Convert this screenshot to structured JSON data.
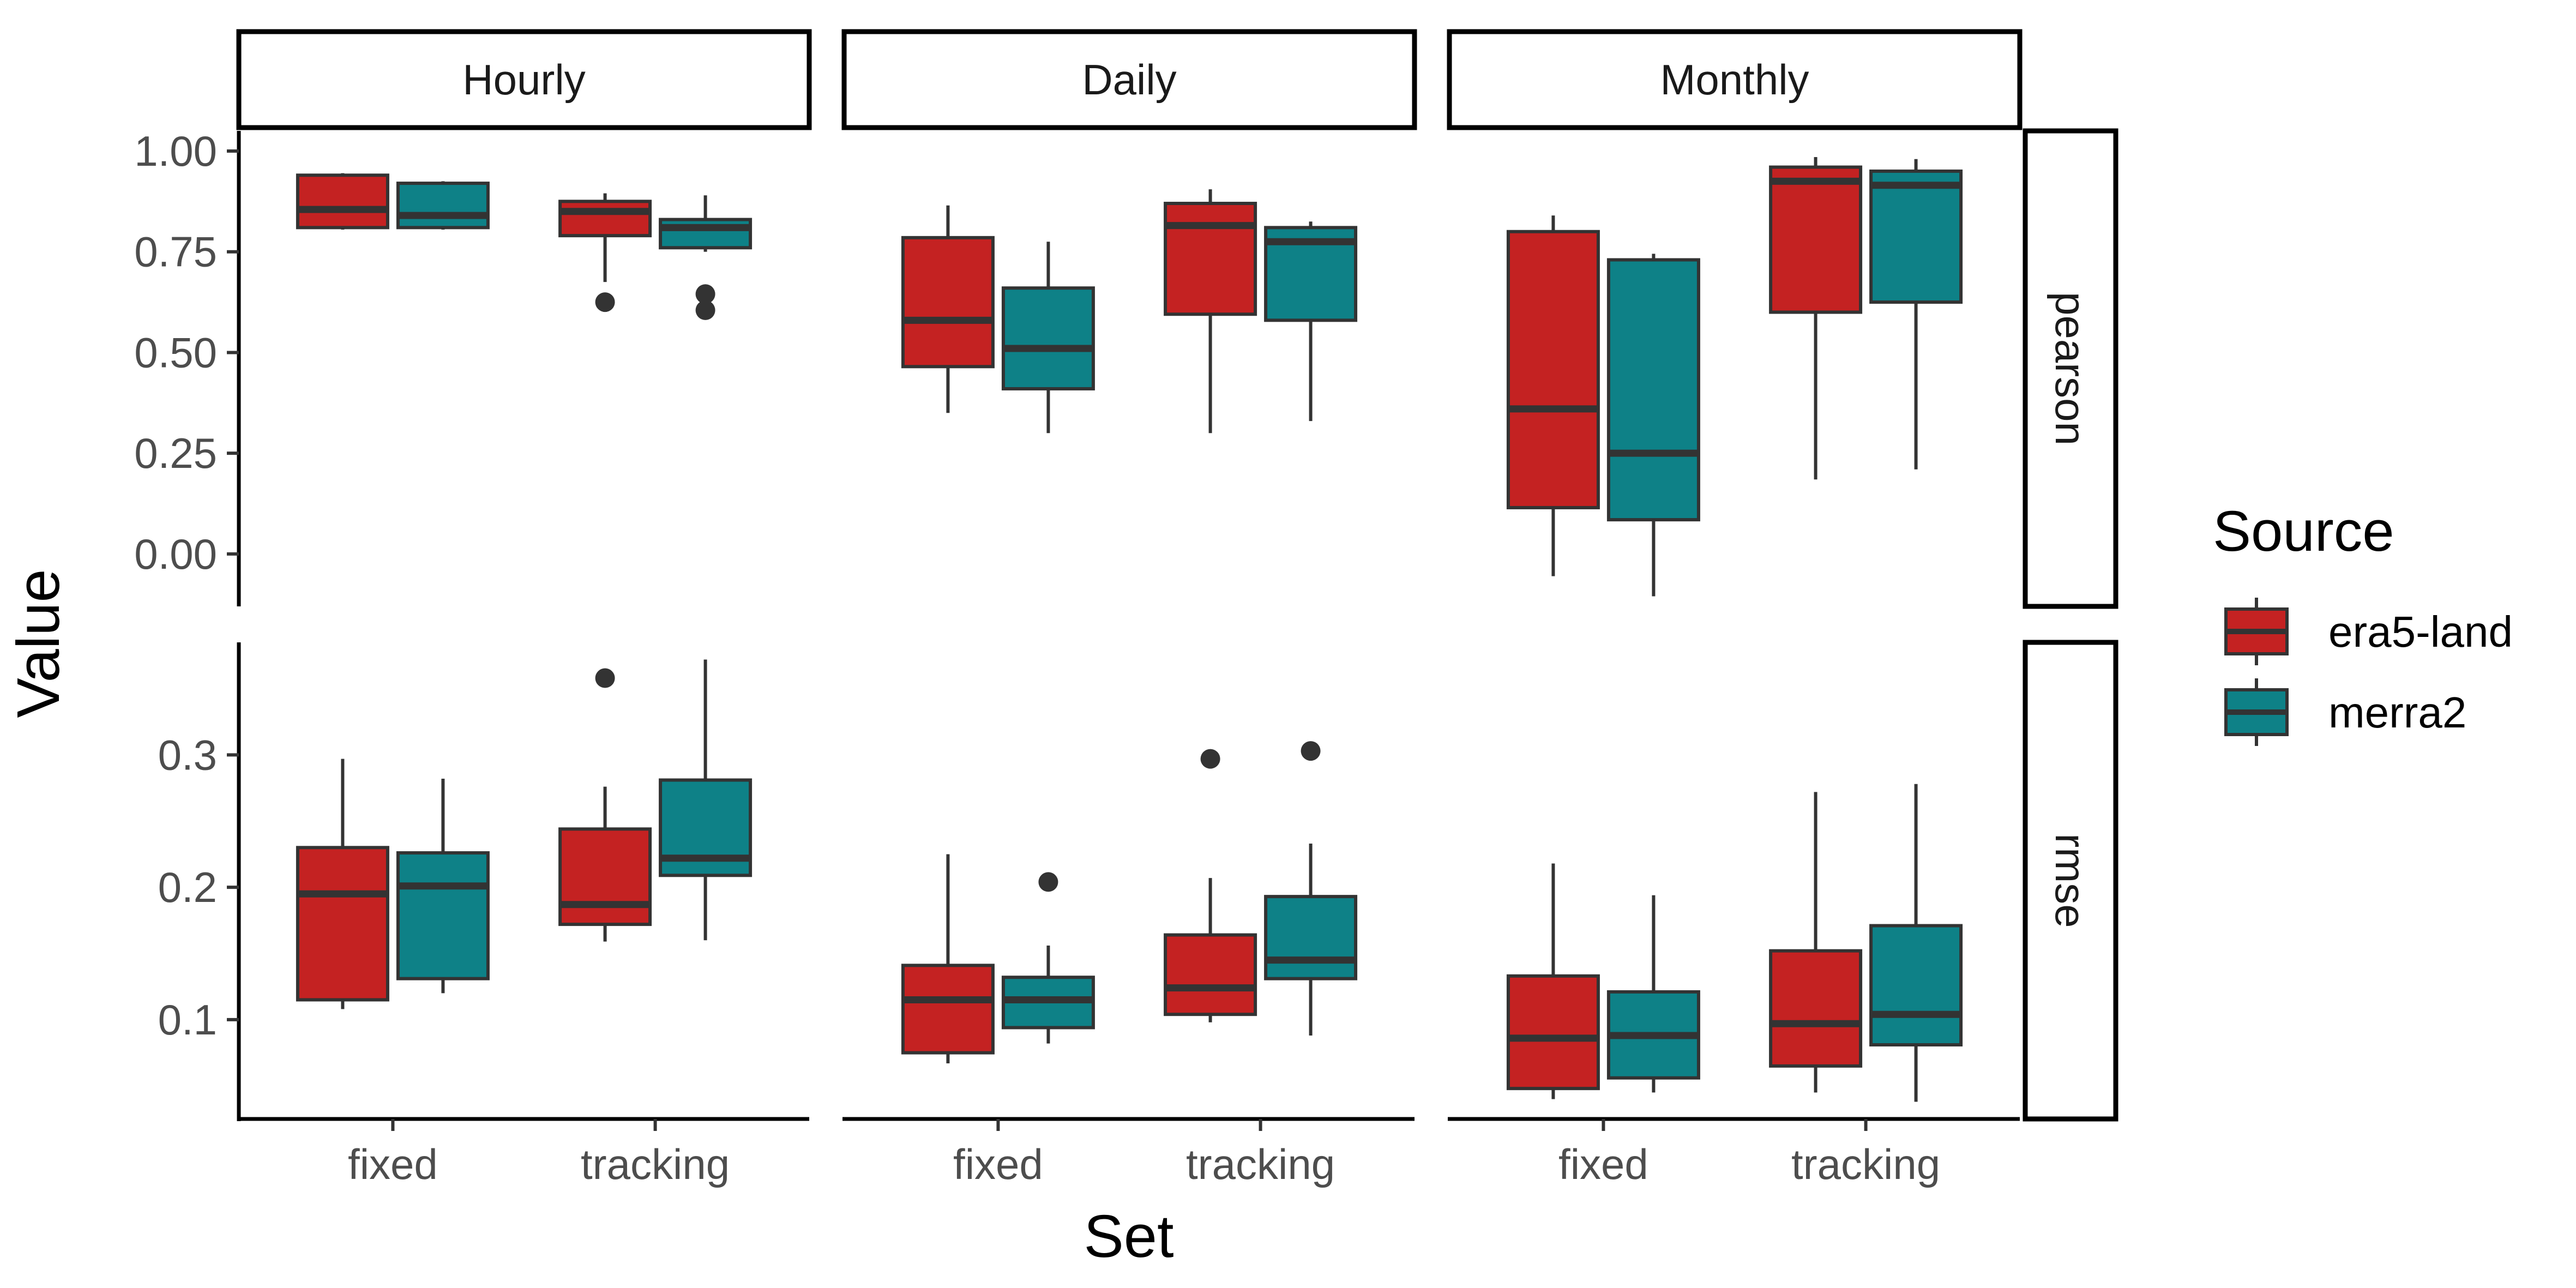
{
  "chart_data": {
    "type": "boxplot",
    "x_title": "Set",
    "y_title": "Value",
    "facet_columns": [
      "Hourly",
      "Daily",
      "Monthly"
    ],
    "facet_rows": [
      {
        "key": "pearson",
        "label": "pearson",
        "ylim": [
          -0.13,
          1.05
        ],
        "ticks": [
          {
            "v": 0,
            "label": "0.00"
          },
          {
            "v": 0.25,
            "label": "0.25"
          },
          {
            "v": 0.5,
            "label": "0.50"
          },
          {
            "v": 0.75,
            "label": "0.75"
          },
          {
            "v": 1.0,
            "label": "1.00"
          }
        ]
      },
      {
        "key": "rmse",
        "label": "rmse",
        "ylim": [
          0.025,
          0.385
        ],
        "ticks": [
          {
            "v": 0.1,
            "label": "0.1"
          },
          {
            "v": 0.2,
            "label": "0.2"
          },
          {
            "v": 0.3,
            "label": "0.3"
          }
        ]
      }
    ],
    "categories": [
      "fixed",
      "tracking"
    ],
    "legend": {
      "title": "Source",
      "position": "right",
      "entries": [
        {
          "key": "era5",
          "label": "era5-land",
          "color": "#C42222"
        },
        {
          "key": "merra2",
          "label": "merra2",
          "color": "#0E8187"
        }
      ]
    },
    "boxes": [
      {
        "row": "pearson",
        "col": "Hourly",
        "set": "fixed",
        "source": "era5",
        "min": 0.805,
        "q1": 0.81,
        "median": 0.855,
        "q3": 0.94,
        "max": 0.945,
        "outliers": []
      },
      {
        "row": "pearson",
        "col": "Hourly",
        "set": "fixed",
        "source": "merra2",
        "min": 0.805,
        "q1": 0.81,
        "median": 0.84,
        "q3": 0.92,
        "max": 0.925,
        "outliers": []
      },
      {
        "row": "pearson",
        "col": "Hourly",
        "set": "tracking",
        "source": "era5",
        "min": 0.675,
        "q1": 0.79,
        "median": 0.85,
        "q3": 0.875,
        "max": 0.895,
        "outliers": [
          0.625
        ]
      },
      {
        "row": "pearson",
        "col": "Hourly",
        "set": "tracking",
        "source": "merra2",
        "min": 0.75,
        "q1": 0.76,
        "median": 0.81,
        "q3": 0.83,
        "max": 0.89,
        "outliers": [
          0.645,
          0.605
        ]
      },
      {
        "row": "pearson",
        "col": "Daily",
        "set": "fixed",
        "source": "era5",
        "min": 0.35,
        "q1": 0.465,
        "median": 0.58,
        "q3": 0.785,
        "max": 0.865,
        "outliers": []
      },
      {
        "row": "pearson",
        "col": "Daily",
        "set": "fixed",
        "source": "merra2",
        "min": 0.3,
        "q1": 0.41,
        "median": 0.51,
        "q3": 0.66,
        "max": 0.775,
        "outliers": []
      },
      {
        "row": "pearson",
        "col": "Daily",
        "set": "tracking",
        "source": "era5",
        "min": 0.3,
        "q1": 0.595,
        "median": 0.815,
        "q3": 0.87,
        "max": 0.905,
        "outliers": []
      },
      {
        "row": "pearson",
        "col": "Daily",
        "set": "tracking",
        "source": "merra2",
        "min": 0.33,
        "q1": 0.58,
        "median": 0.775,
        "q3": 0.81,
        "max": 0.825,
        "outliers": []
      },
      {
        "row": "pearson",
        "col": "Monthly",
        "set": "fixed",
        "source": "era5",
        "min": -0.055,
        "q1": 0.115,
        "median": 0.36,
        "q3": 0.8,
        "max": 0.84,
        "outliers": []
      },
      {
        "row": "pearson",
        "col": "Monthly",
        "set": "fixed",
        "source": "merra2",
        "min": -0.105,
        "q1": 0.085,
        "median": 0.25,
        "q3": 0.73,
        "max": 0.745,
        "outliers": []
      },
      {
        "row": "pearson",
        "col": "Monthly",
        "set": "tracking",
        "source": "era5",
        "min": 0.185,
        "q1": 0.6,
        "median": 0.925,
        "q3": 0.96,
        "max": 0.985,
        "outliers": []
      },
      {
        "row": "pearson",
        "col": "Monthly",
        "set": "tracking",
        "source": "merra2",
        "min": 0.21,
        "q1": 0.625,
        "median": 0.915,
        "q3": 0.95,
        "max": 0.98,
        "outliers": []
      },
      {
        "row": "rmse",
        "col": "Hourly",
        "set": "fixed",
        "source": "era5",
        "min": 0.108,
        "q1": 0.115,
        "median": 0.195,
        "q3": 0.23,
        "max": 0.297,
        "outliers": []
      },
      {
        "row": "rmse",
        "col": "Hourly",
        "set": "fixed",
        "source": "merra2",
        "min": 0.12,
        "q1": 0.131,
        "median": 0.201,
        "q3": 0.226,
        "max": 0.282,
        "outliers": []
      },
      {
        "row": "rmse",
        "col": "Hourly",
        "set": "tracking",
        "source": "era5",
        "min": 0.159,
        "q1": 0.172,
        "median": 0.187,
        "q3": 0.244,
        "max": 0.276,
        "outliers": [
          0.358
        ]
      },
      {
        "row": "rmse",
        "col": "Hourly",
        "set": "tracking",
        "source": "merra2",
        "min": 0.16,
        "q1": 0.209,
        "median": 0.222,
        "q3": 0.281,
        "max": 0.372,
        "outliers": []
      },
      {
        "row": "rmse",
        "col": "Daily",
        "set": "fixed",
        "source": "era5",
        "min": 0.067,
        "q1": 0.075,
        "median": 0.115,
        "q3": 0.141,
        "max": 0.225,
        "outliers": []
      },
      {
        "row": "rmse",
        "col": "Daily",
        "set": "fixed",
        "source": "merra2",
        "min": 0.082,
        "q1": 0.094,
        "median": 0.115,
        "q3": 0.132,
        "max": 0.156,
        "outliers": [
          0.204
        ]
      },
      {
        "row": "rmse",
        "col": "Daily",
        "set": "tracking",
        "source": "era5",
        "min": 0.098,
        "q1": 0.104,
        "median": 0.124,
        "q3": 0.164,
        "max": 0.207,
        "outliers": [
          0.297
        ]
      },
      {
        "row": "rmse",
        "col": "Daily",
        "set": "tracking",
        "source": "merra2",
        "min": 0.088,
        "q1": 0.131,
        "median": 0.145,
        "q3": 0.193,
        "max": 0.233,
        "outliers": [
          0.303
        ]
      },
      {
        "row": "rmse",
        "col": "Monthly",
        "set": "fixed",
        "source": "era5",
        "min": 0.04,
        "q1": 0.048,
        "median": 0.086,
        "q3": 0.133,
        "max": 0.218,
        "outliers": []
      },
      {
        "row": "rmse",
        "col": "Monthly",
        "set": "fixed",
        "source": "merra2",
        "min": 0.045,
        "q1": 0.056,
        "median": 0.088,
        "q3": 0.121,
        "max": 0.194,
        "outliers": []
      },
      {
        "row": "rmse",
        "col": "Monthly",
        "set": "tracking",
        "source": "era5",
        "min": 0.045,
        "q1": 0.065,
        "median": 0.097,
        "q3": 0.152,
        "max": 0.272,
        "outliers": []
      },
      {
        "row": "rmse",
        "col": "Monthly",
        "set": "tracking",
        "source": "merra2",
        "min": 0.038,
        "q1": 0.081,
        "median": 0.104,
        "q3": 0.171,
        "max": 0.278,
        "outliers": []
      }
    ]
  }
}
